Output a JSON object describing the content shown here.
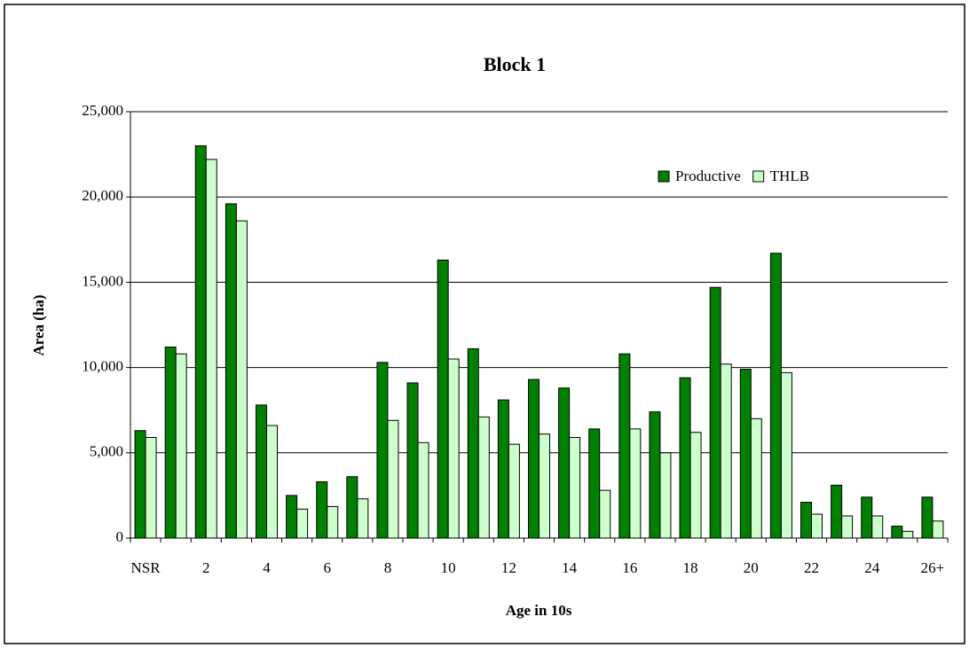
{
  "chart_data": {
    "type": "bar",
    "title": "Block 1",
    "x_label": "Age in 10s",
    "y_label": "Area (ha)",
    "categories": [
      "NSR",
      null,
      "2",
      null,
      "4",
      null,
      "6",
      null,
      "8",
      null,
      "10",
      null,
      "12",
      null,
      "14",
      null,
      "16",
      null,
      "18",
      null,
      "20",
      null,
      "22",
      null,
      "24",
      null,
      "26+"
    ],
    "series": [
      {
        "name": "Productive",
        "color": "#008000",
        "values": [
          6300,
          11200,
          23000,
          19600,
          7800,
          2500,
          3300,
          3600,
          10300,
          9100,
          16300,
          11100,
          8100,
          9300,
          8800,
          6400,
          10800,
          7400,
          9400,
          14700,
          9900,
          16700,
          2100,
          3100,
          2400,
          700,
          2400
        ]
      },
      {
        "name": "THLB",
        "color": "#ccffcc",
        "values": [
          5900,
          10800,
          22200,
          18600,
          6600,
          1700,
          1850,
          2300,
          6900,
          5600,
          10500,
          7100,
          5500,
          6100,
          5900,
          2800,
          6400,
          5000,
          6200,
          10200,
          7000,
          9700,
          1400,
          1300,
          1300,
          400,
          1000
        ]
      }
    ],
    "ylim": [
      0,
      25000
    ],
    "yticks": [
      0,
      {
        "value": 5000,
        "label": "5,000"
      },
      {
        "value": 10000,
        "label": "10,000"
      },
      {
        "value": 15000,
        "label": "15,000"
      },
      {
        "value": 20000,
        "label": "20,000"
      },
      {
        "value": 25000,
        "label": "25,000"
      }
    ],
    "grid": true,
    "legend": "upper right"
  }
}
